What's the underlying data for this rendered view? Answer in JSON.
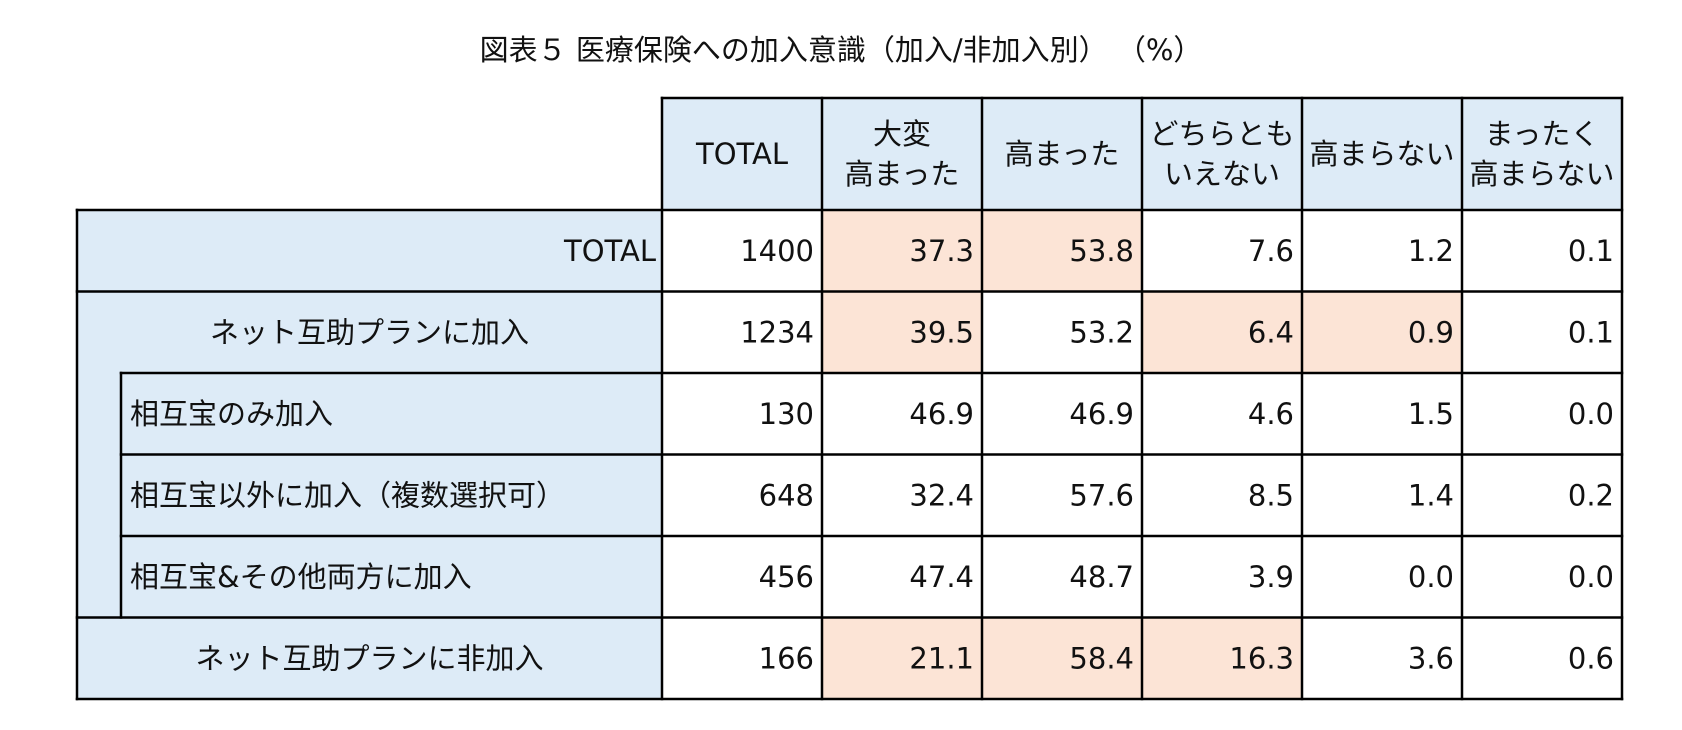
{
  "chart_data": {
    "type": "table",
    "title": "図表５ 医療保険への加入意識（加入/非加入別） （%）",
    "columns": [
      [
        "TOTAL"
      ],
      [
        "大変",
        "高まった"
      ],
      [
        "高まった"
      ],
      [
        "どちらとも",
        "いえない"
      ],
      [
        "高まらない"
      ],
      [
        "まったく",
        "高まらない"
      ]
    ],
    "rows": [
      {
        "label": "TOTAL",
        "indent": 0,
        "align": "right",
        "values": [
          "1400",
          "37.3",
          "53.8",
          "7.6",
          "1.2",
          "0.1"
        ],
        "highlight": [
          false,
          true,
          true,
          false,
          false,
          false
        ]
      },
      {
        "label": "ネット互助プランに加入",
        "indent": 0,
        "align": "center",
        "values": [
          "1234",
          "39.5",
          "53.2",
          "6.4",
          "0.9",
          "0.1"
        ],
        "highlight": [
          false,
          true,
          false,
          true,
          true,
          false
        ]
      },
      {
        "label": "相互宝のみ加入",
        "indent": 1,
        "align": "left",
        "values": [
          "130",
          "46.9",
          "46.9",
          "4.6",
          "1.5",
          "0.0"
        ],
        "highlight": [
          false,
          false,
          false,
          false,
          false,
          false
        ]
      },
      {
        "label": "相互宝以外に加入（複数選択可）",
        "indent": 1,
        "align": "left",
        "values": [
          "648",
          "32.4",
          "57.6",
          "8.5",
          "1.4",
          "0.2"
        ],
        "highlight": [
          false,
          false,
          false,
          false,
          false,
          false
        ]
      },
      {
        "label": "相互宝&その他両方に加入",
        "indent": 1,
        "align": "left",
        "values": [
          "456",
          "47.4",
          "48.7",
          "3.9",
          "0.0",
          "0.0"
        ],
        "highlight": [
          false,
          false,
          false,
          false,
          false,
          false
        ]
      },
      {
        "label": "ネット互助プランに非加入",
        "indent": 0,
        "align": "center",
        "values": [
          "166",
          "21.1",
          "58.4",
          "16.3",
          "3.6",
          "0.6"
        ],
        "highlight": [
          false,
          true,
          true,
          true,
          false,
          false
        ]
      }
    ],
    "colors": {
      "header_fill": "#ddebf7",
      "highlight_fill": "#fce4d6",
      "cell_fill": "#ffffff",
      "border": "#000000",
      "text": "#111111"
    }
  }
}
